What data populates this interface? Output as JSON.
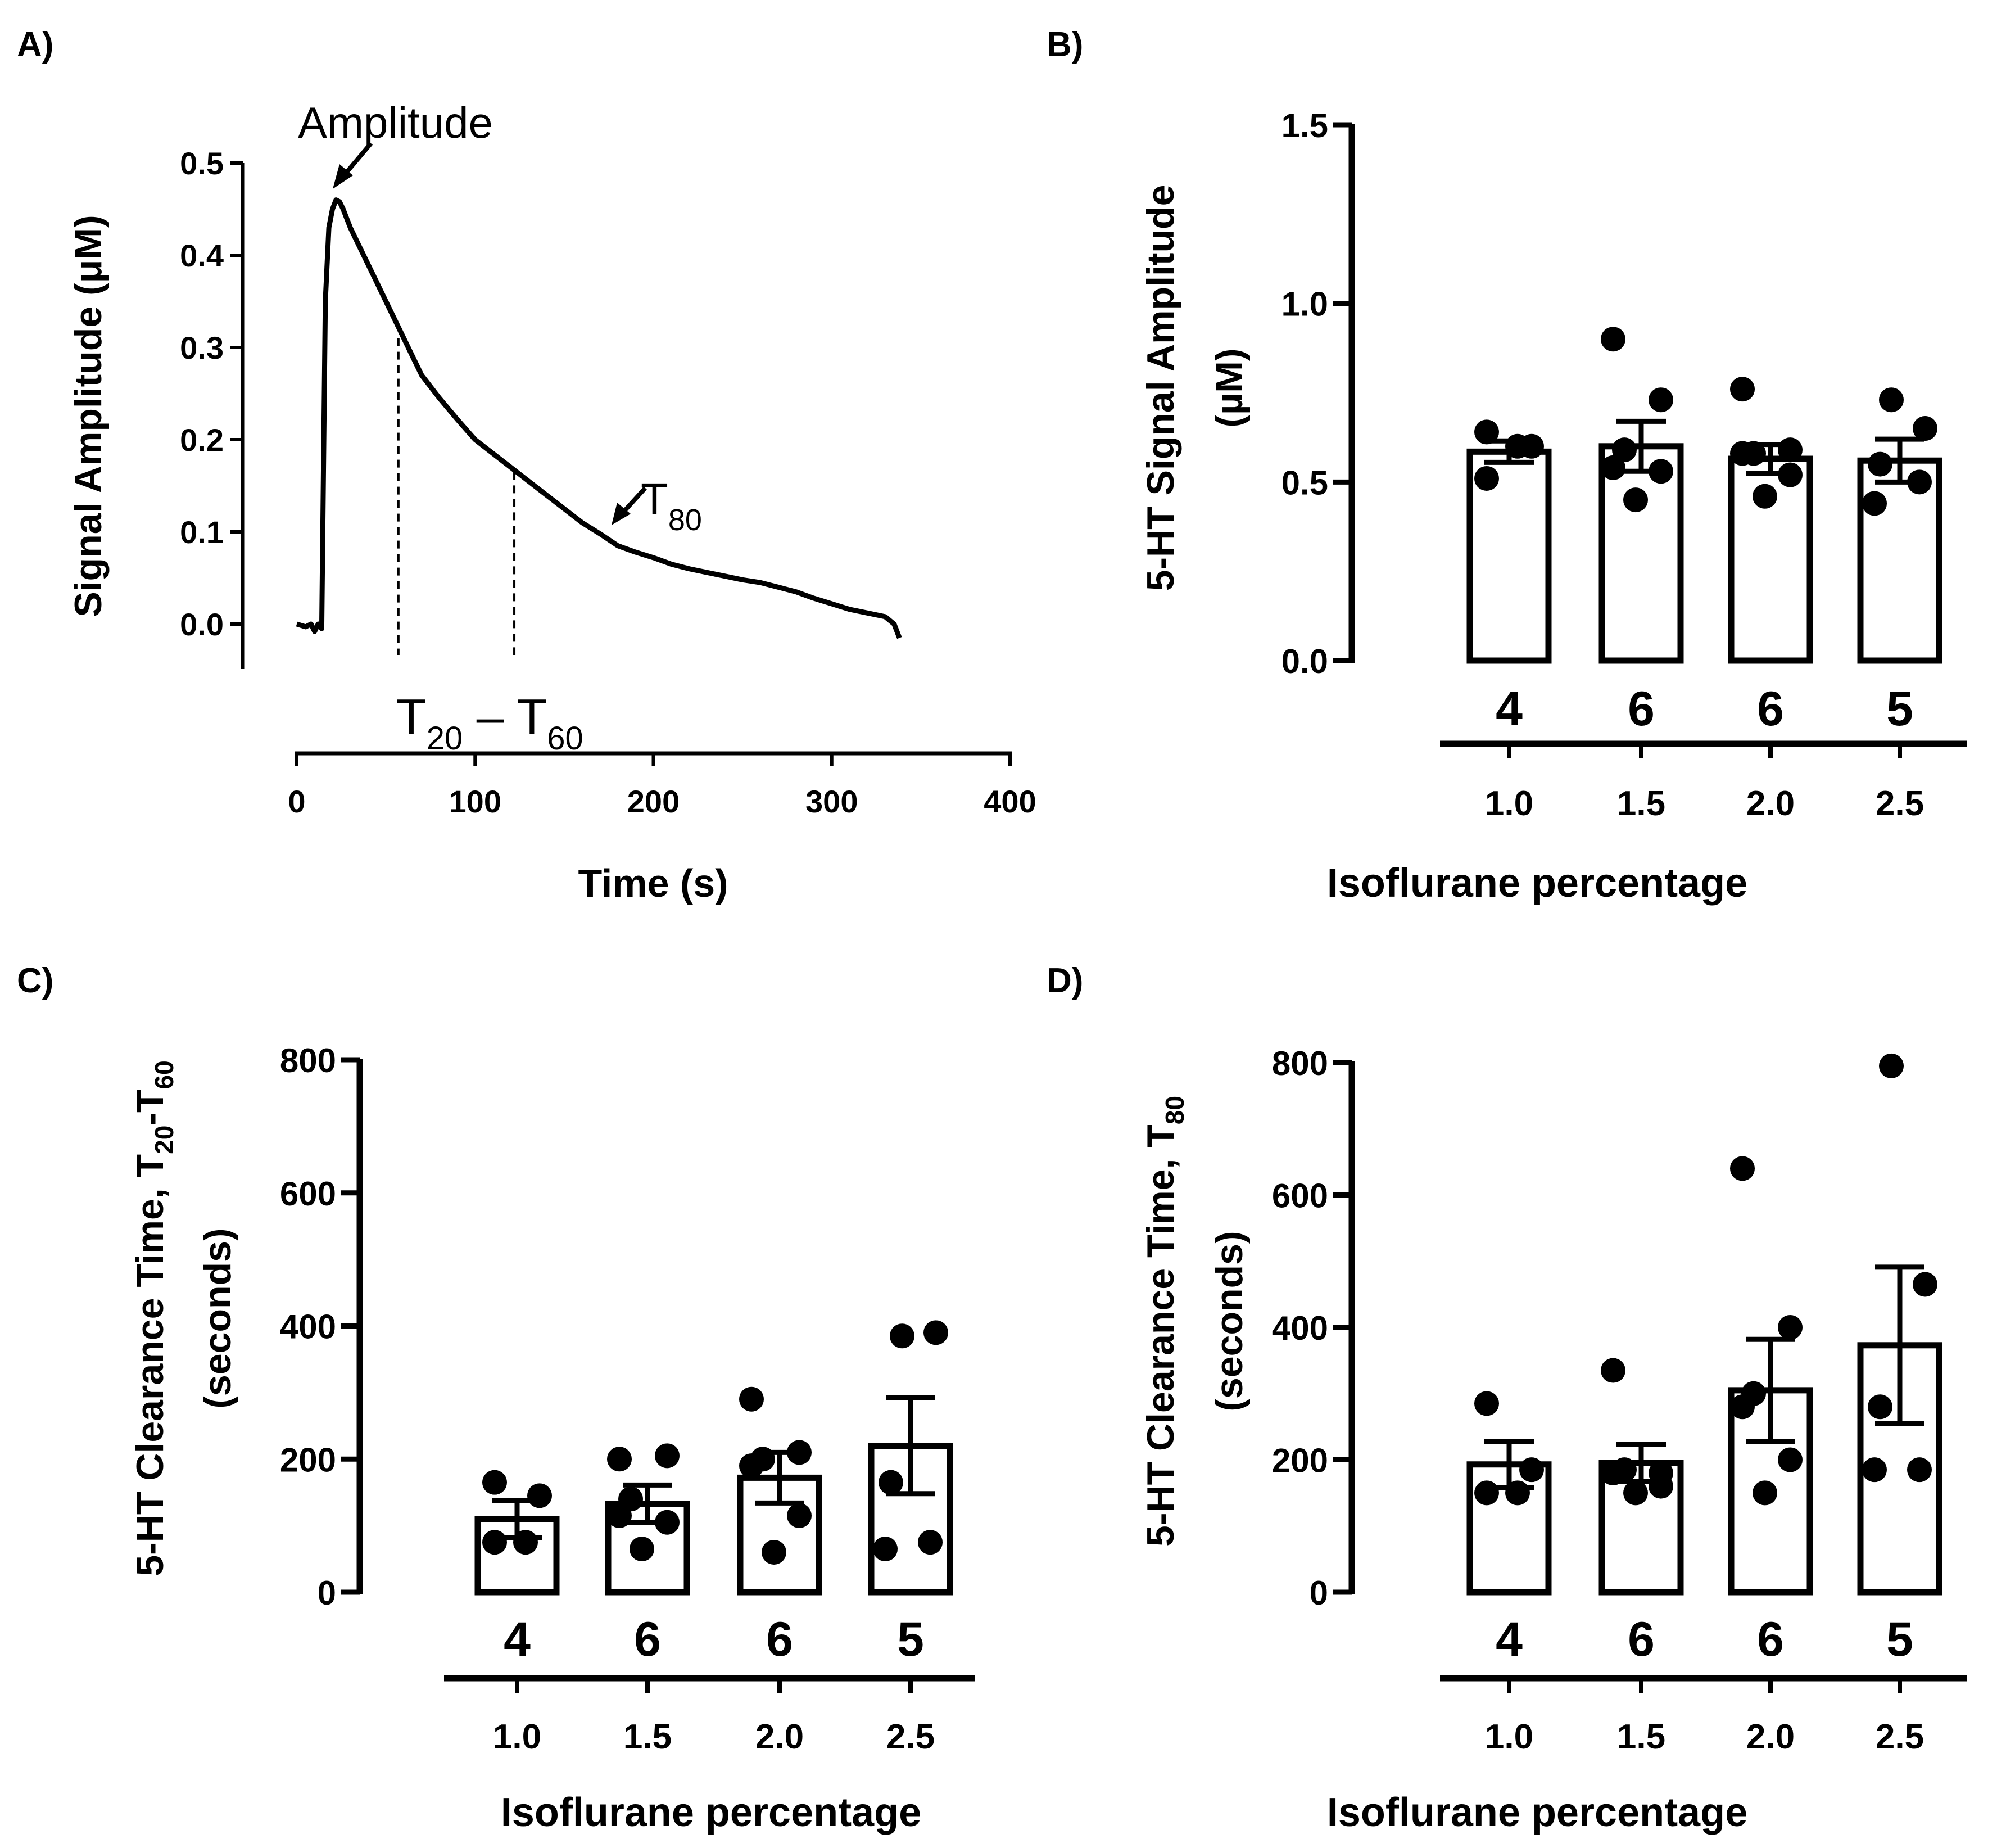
{
  "chart_data": [
    {
      "panel": "A)",
      "type": "line",
      "xlabel": "Time (s)",
      "ylabel": "Signal Amplitude  (μM)",
      "xlim": [
        0,
        400
      ],
      "ylim": [
        0.0,
        0.5
      ],
      "x_ticks": [
        "0",
        "100",
        "200",
        "300",
        "400"
      ],
      "y_ticks": [
        "0.0",
        "0.1",
        "0.2",
        "0.3",
        "0.4",
        "0.5"
      ],
      "series": [
        {
          "x": [
            0,
            5,
            8,
            10,
            12,
            14,
            16,
            18,
            20,
            22,
            24,
            26,
            28,
            30,
            35,
            40,
            45,
            50,
            55,
            60,
            65,
            70,
            80,
            90,
            100,
            110,
            120,
            130,
            140,
            150,
            160,
            170,
            180,
            190,
            200,
            210,
            220,
            230,
            240,
            250,
            260,
            270,
            280,
            290,
            300,
            310,
            320,
            330,
            335,
            338
          ],
          "y": [
            0.0,
            -0.003,
            0.0,
            -0.008,
            0.0,
            -0.005,
            0.35,
            0.43,
            0.45,
            0.46,
            0.458,
            0.45,
            0.44,
            0.43,
            0.41,
            0.39,
            0.37,
            0.35,
            0.33,
            0.31,
            0.29,
            0.27,
            0.245,
            0.222,
            0.2,
            0.185,
            0.17,
            0.155,
            0.14,
            0.125,
            0.11,
            0.098,
            0.085,
            0.078,
            0.072,
            0.065,
            0.06,
            0.056,
            0.052,
            0.048,
            0.045,
            0.04,
            0.035,
            0.028,
            0.022,
            0.016,
            0.012,
            0.008,
            0.0,
            -0.015
          ]
        }
      ],
      "annotations": [
        {
          "text": "Amplitude",
          "x": 24,
          "y": 0.46
        },
        {
          "text": "T",
          "subscript": "80",
          "x": 178,
          "y": 0.1
        },
        {
          "text": "T",
          "subscript": "20",
          "middle": " – T",
          "subscript2": "60"
        }
      ],
      "dashed_lines": [
        {
          "x": 57,
          "y": 0.31
        },
        {
          "x": 122,
          "y": 0.165
        }
      ]
    },
    {
      "panel": "B)",
      "type": "bar",
      "ylabel": "5-HT Signal Amplitude",
      "ylabel2": "(µM)",
      "xlabel": "Isoflurane percentage",
      "categories": [
        "1.0",
        "1.5",
        "2.0",
        "2.5"
      ],
      "n_labels": [
        "4",
        "6",
        "6",
        "5"
      ],
      "values": [
        0.585,
        0.6,
        0.565,
        0.56
      ],
      "sem": [
        0.03,
        0.07,
        0.04,
        0.06
      ],
      "points": [
        [
          0.64,
          0.6,
          0.6,
          0.51
        ],
        [
          0.9,
          0.73,
          0.59,
          0.54,
          0.53,
          0.45
        ],
        [
          0.76,
          0.59,
          0.58,
          0.58,
          0.52,
          0.46
        ],
        [
          0.73,
          0.65,
          0.55,
          0.5,
          0.44
        ]
      ],
      "ylim": [
        0.0,
        1.5
      ],
      "y_ticks": [
        "0.0",
        "0.5",
        "1.0",
        "1.5"
      ]
    },
    {
      "panel": "C)",
      "type": "bar",
      "ylabel": "5-HT Clearance Time, T",
      "ylabel_sub1": "20",
      "ylabel_mid": "-T",
      "ylabel_sub2": "60",
      "ylabel2": "(seconds)",
      "xlabel": "Isoflurane percentage",
      "categories": [
        "1.0",
        "1.5",
        "2.0",
        "2.5"
      ],
      "n_labels": [
        "4",
        "6",
        "6",
        "5"
      ],
      "values": [
        110,
        133,
        172,
        220
      ],
      "sem": [
        28,
        28,
        38,
        72
      ],
      "points": [
        [
          165,
          145,
          75,
          75
        ],
        [
          200,
          205,
          140,
          115,
          105,
          65
        ],
        [
          290,
          210,
          200,
          190,
          115,
          60
        ],
        [
          385,
          390,
          165,
          75,
          65
        ]
      ],
      "ylim": [
        0,
        800
      ],
      "y_ticks": [
        "0",
        "200",
        "400",
        "600",
        "800"
      ]
    },
    {
      "panel": "D)",
      "type": "bar",
      "ylabel": "5-HT Clearance Time, T",
      "ylabel_sub1": "80",
      "ylabel2": "(seconds)",
      "xlabel": "Isoflurane percentage",
      "categories": [
        "1.0",
        "1.5",
        "2.0",
        "2.5"
      ],
      "n_labels": [
        "4",
        "6",
        "6",
        "5"
      ],
      "values": [
        193,
        195,
        305,
        373
      ],
      "sem": [
        35,
        28,
        77,
        118
      ],
      "points": [
        [
          285,
          185,
          150,
          150
        ],
        [
          335,
          180,
          185,
          180,
          160,
          150
        ],
        [
          640,
          400,
          300,
          280,
          200,
          150
        ],
        [
          795,
          465,
          280,
          185,
          185
        ]
      ],
      "ylim": [
        0,
        800
      ],
      "y_ticks": [
        "0",
        "200",
        "400",
        "600",
        "800"
      ]
    }
  ]
}
